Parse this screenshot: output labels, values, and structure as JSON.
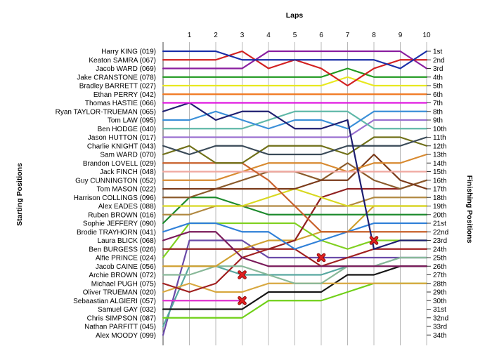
{
  "chart_data": {
    "type": "line",
    "title": "Laps",
    "ylabel_left": "Starting Positions",
    "ylabel_right": "Finishing Positions",
    "x": [
      1,
      2,
      3,
      4,
      5,
      6,
      7,
      8,
      9,
      10
    ],
    "xlim": [
      0,
      10
    ],
    "ylim": [
      1,
      34
    ],
    "y_inverted": true,
    "grid": "vertical",
    "start_labels": [
      "Harry KING (019)",
      "Keaton SAMRA (067)",
      "Jacob WARD (069)",
      "Jake CRANSTONE (078)",
      "Bradley BARRETT (027)",
      "Ethan PERRY (042)",
      "Thomas HASTIE (066)",
      "Ryan TAYLOR-TRUEMAN (065)",
      "Tom LAW (095)",
      "Ben HODGE (040)",
      "Jason HUTTON (017)",
      "Charlie KNIGHT (043)",
      "Sam WARD (070)",
      "Brandon LOVELL (029)",
      "Jack FINCH (048)",
      "Guy CUNNINGTON (052)",
      "Tom MASON (022)",
      "Harrison COLLINGS (096)",
      "Alex EADES (088)",
      "Ruben BROWN (016)",
      "Sophie JEFFERY (090)",
      "Brodie TRAYHORN (041)",
      "Laura BLICK (068)",
      "Ben BURGESS (026)",
      "Alfie PRINCE (024)",
      "Jacob CAINE (056)",
      "Archie BROWN (072)",
      "Michael PUGH (075)",
      "Oliver TRUEMAN (020)",
      "Sebaastian ALGIERI (057)",
      "Samuel GAY (032)",
      "Chris SIMPSON (087)",
      "Nathan PARFITT (045)",
      "Alex MOODY (099)"
    ],
    "finish_labels": [
      "1st",
      "2nd",
      "3rd",
      "4th",
      "5th",
      "6th",
      "7th",
      "8th",
      "9th",
      "10th",
      "11th",
      "12th",
      "13th",
      "14th",
      "15th",
      "16th",
      "17th",
      "18th",
      "19th",
      "20th",
      "21st",
      "22nd",
      "23rd",
      "24th",
      "25th",
      "26th",
      "27th",
      "28th",
      "29th",
      "30th",
      "31st",
      "32nd",
      "33rd",
      "34th"
    ],
    "retired_marker_color": "#e02020",
    "series": [
      {
        "start": 1,
        "color": "#1a2fa8",
        "positions": [
          1,
          1,
          2,
          2,
          2,
          2,
          2,
          2,
          3,
          1
        ]
      },
      {
        "start": 2,
        "color": "#d22020",
        "positions": [
          2,
          2,
          1,
          3,
          2,
          3,
          5,
          3,
          2,
          2
        ]
      },
      {
        "start": 3,
        "color": "#8a1ea0",
        "positions": [
          3,
          3,
          3,
          1,
          1,
          1,
          1,
          1,
          1,
          3
        ]
      },
      {
        "start": 4,
        "color": "#229a22",
        "positions": [
          4,
          4,
          4,
          4,
          4,
          4,
          3,
          4,
          4,
          4
        ]
      },
      {
        "start": 5,
        "color": "#e8e820",
        "positions": [
          5,
          5,
          5,
          5,
          5,
          5,
          4,
          5,
          5,
          5
        ]
      },
      {
        "start": 6,
        "color": "#f07820",
        "positions": [
          6,
          6,
          6,
          6,
          6,
          6,
          6,
          6,
          6,
          6
        ]
      },
      {
        "start": 7,
        "color": "#e018e0",
        "positions": [
          7,
          7,
          7,
          7,
          7,
          7,
          7,
          7,
          7,
          7
        ]
      },
      {
        "start": 8,
        "color": "#1e1e70",
        "positions": [
          7,
          9,
          8,
          8,
          10,
          10,
          9,
          24,
          23,
          23
        ]
      },
      {
        "start": 9,
        "color": "#3a8fd8",
        "positions": [
          9,
          8,
          9,
          10,
          9,
          9,
          10,
          8,
          8,
          8
        ]
      },
      {
        "start": 10,
        "color": "#5fb8a8",
        "positions": [
          10,
          10,
          10,
          9,
          8,
          8,
          8,
          10,
          10,
          10
        ]
      },
      {
        "start": 11,
        "color": "#9a70d0",
        "positions": [
          11,
          11,
          11,
          11,
          11,
          11,
          11,
          9,
          9,
          9
        ]
      },
      {
        "start": 12,
        "color": "#3a4a58",
        "positions": [
          13,
          12,
          12,
          13,
          13,
          13,
          12,
          12,
          12,
          11
        ]
      },
      {
        "start": 13,
        "color": "#707018",
        "positions": [
          12,
          14,
          14,
          12,
          12,
          12,
          13,
          11,
          11,
          12
        ]
      },
      {
        "start": 14,
        "color": "#c8602a",
        "positions": [
          14,
          14,
          14,
          16,
          19,
          22,
          22,
          22,
          22,
          22
        ]
      },
      {
        "start": 15,
        "color": "#f0a8a0",
        "positions": [
          15,
          15,
          15,
          15,
          15,
          15,
          15,
          15,
          15,
          15
        ]
      },
      {
        "start": 16,
        "color": "#d88a30",
        "positions": [
          16,
          16,
          15,
          14,
          14,
          14,
          15,
          14,
          14,
          13
        ]
      },
      {
        "start": 17,
        "color": "#7a3a1a",
        "positions": [
          17,
          17,
          17,
          17,
          17,
          16,
          16,
          13,
          16,
          17
        ]
      },
      {
        "start": 18,
        "color": "#8a5a2a",
        "positions": [
          18,
          17,
          16,
          15,
          15,
          16,
          14,
          16,
          17,
          16
        ]
      },
      {
        "start": 19,
        "color": "#d8d820",
        "positions": [
          19,
          19,
          19,
          18,
          17,
          18,
          19,
          19,
          19,
          19
        ]
      },
      {
        "start": 20,
        "color": "#b08840",
        "positions": [
          20,
          19,
          19,
          19,
          19,
          19,
          19,
          18,
          18,
          18
        ]
      },
      {
        "start": 21,
        "color": "#1c8a2c",
        "positions": [
          18,
          18,
          19,
          20,
          20,
          20,
          20,
          20,
          20,
          20
        ]
      },
      {
        "start": 22,
        "color": "#3080d8",
        "positions": [
          21,
          21,
          22,
          22,
          24,
          23,
          22,
          21,
          21,
          21
        ]
      },
      {
        "start": 23,
        "color": "#7a1a5a",
        "positions": [
          22,
          22,
          25,
          26,
          26,
          26,
          26,
          26,
          26,
          26
        ]
      },
      {
        "start": 24,
        "color": "#902020",
        "positions": [
          24,
          24,
          24,
          24,
          23,
          18,
          17,
          17,
          17,
          16
        ]
      },
      {
        "start": 25,
        "color": "#80d020",
        "positions": [
          21,
          21,
          21,
          21,
          21,
          23,
          24,
          23,
          23,
          23
        ]
      },
      {
        "start": 26,
        "color": "#d0a030",
        "positions": [
          26,
          26,
          24,
          23,
          23,
          22,
          22,
          19,
          19,
          19
        ]
      },
      {
        "start": 27,
        "color": "#88b898",
        "positions": [
          27,
          26,
          26,
          27,
          28,
          28,
          26,
          26,
          25,
          25
        ]
      },
      {
        "start": 28,
        "color": "#a02020",
        "positions": [
          29,
          28,
          25,
          24,
          24,
          26,
          25,
          24,
          24,
          24
        ]
      },
      {
        "start": 29,
        "color": "#d8a840",
        "positions": [
          28,
          29,
          29,
          28,
          28,
          28,
          28,
          28,
          28,
          28
        ]
      },
      {
        "start": 30,
        "color": "#e030d0",
        "positions": [
          30,
          30,
          30
        ]
      },
      {
        "start": 31,
        "color": "#151515",
        "positions": [
          31,
          31,
          31,
          29,
          29,
          29,
          27,
          27,
          26,
          26
        ]
      },
      {
        "start": 32,
        "color": "#70d018",
        "positions": [
          32,
          32,
          32,
          30,
          30,
          30,
          29,
          28,
          28,
          28
        ]
      },
      {
        "start": 33,
        "color": "#58a8a0",
        "positions": [
          26,
          26,
          27,
          27,
          27,
          27,
          26,
          26,
          25,
          25
        ]
      },
      {
        "start": 34,
        "color": "#6a4aa8",
        "positions": [
          23,
          23,
          23,
          25,
          25,
          25,
          25,
          25,
          25,
          25
        ]
      }
    ],
    "retirements": [
      {
        "lap": 3,
        "position": 27
      },
      {
        "lap": 3,
        "position": 30
      },
      {
        "lap": 6,
        "position": 25
      },
      {
        "lap": 8,
        "position": 23
      }
    ]
  }
}
